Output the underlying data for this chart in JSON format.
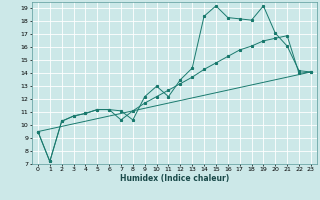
{
  "title": "",
  "xlabel": "Humidex (Indice chaleur)",
  "ylabel": "",
  "bg_color": "#cce8e8",
  "grid_color": "#ffffff",
  "line_color": "#1a7a6e",
  "xlim": [
    -0.5,
    23.5
  ],
  "ylim": [
    7,
    19.5
  ],
  "xticks": [
    0,
    1,
    2,
    3,
    4,
    5,
    6,
    7,
    8,
    9,
    10,
    11,
    12,
    13,
    14,
    15,
    16,
    17,
    18,
    19,
    20,
    21,
    22,
    23
  ],
  "yticks": [
    7,
    8,
    9,
    10,
    11,
    12,
    13,
    14,
    15,
    16,
    17,
    18,
    19
  ],
  "series1_x": [
    0,
    1,
    2,
    3,
    4,
    5,
    6,
    7,
    8,
    9,
    10,
    11,
    12,
    13,
    14,
    15,
    16,
    17,
    18,
    19,
    20,
    21,
    22,
    23
  ],
  "series1_y": [
    9.5,
    7.2,
    10.3,
    10.7,
    10.9,
    11.2,
    11.2,
    11.1,
    10.4,
    12.2,
    13.0,
    12.2,
    13.5,
    14.4,
    18.4,
    19.2,
    18.3,
    18.2,
    18.1,
    19.2,
    17.1,
    16.1,
    14.2,
    14.1
  ],
  "series2_x": [
    0,
    1,
    2,
    3,
    4,
    5,
    6,
    7,
    8,
    9,
    10,
    11,
    12,
    13,
    14,
    15,
    16,
    17,
    18,
    19,
    20,
    21,
    22,
    23
  ],
  "series2_y": [
    9.5,
    7.2,
    10.3,
    10.7,
    10.9,
    11.2,
    11.2,
    10.4,
    11.1,
    11.7,
    12.2,
    12.7,
    13.2,
    13.7,
    14.3,
    14.8,
    15.3,
    15.8,
    16.1,
    16.5,
    16.7,
    16.9,
    14.0,
    14.1
  ],
  "series3_x": [
    0,
    23
  ],
  "series3_y": [
    9.5,
    14.1
  ],
  "tick_fontsize": 4.5,
  "xlabel_fontsize": 5.5
}
